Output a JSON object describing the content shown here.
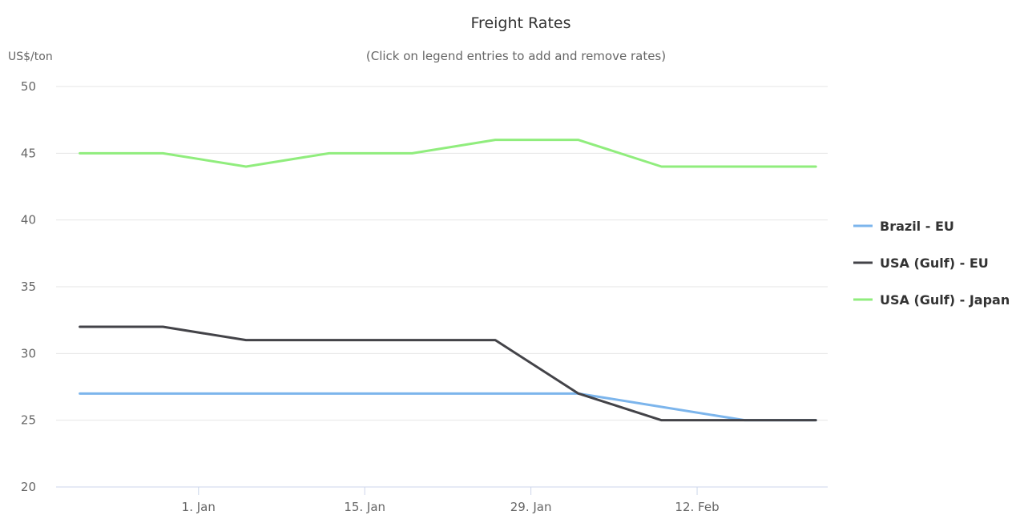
{
  "chart_data": {
    "type": "line",
    "title": "Freight Rates",
    "subtitle": "(Click on legend entries to add and remove rates)",
    "xlabel": "",
    "ylabel": "US$/ton",
    "ylim": [
      20,
      50
    ],
    "xlim": [
      "2017-12-20",
      "2018-02-23"
    ],
    "y_ticks": [
      20,
      25,
      30,
      35,
      40,
      45,
      50
    ],
    "x_ticks": [
      {
        "date": "2018-01-01",
        "label": "1. Jan"
      },
      {
        "date": "2018-01-15",
        "label": "15. Jan"
      },
      {
        "date": "2018-01-29",
        "label": "29. Jan"
      },
      {
        "date": "2018-02-12",
        "label": "12. Feb"
      }
    ],
    "x": [
      "2017-12-22",
      "2017-12-29",
      "2018-01-05",
      "2018-01-12",
      "2018-01-19",
      "2018-01-26",
      "2018-02-02",
      "2018-02-09",
      "2018-02-16",
      "2018-02-22"
    ],
    "grid": true,
    "legend_position": "right",
    "series": [
      {
        "name": "Brazil - EU",
        "color": "#7cb5ec",
        "values": [
          27,
          27,
          27,
          27,
          27,
          27,
          27,
          26,
          25,
          25
        ]
      },
      {
        "name": "USA (Gulf) - EU",
        "color": "#434348",
        "values": [
          32,
          32,
          31,
          31,
          31,
          31,
          27,
          25,
          25,
          25
        ]
      },
      {
        "name": "USA (Gulf) - Japan",
        "color": "#90ed7d",
        "values": [
          45,
          45,
          44,
          45,
          45,
          46,
          46,
          44,
          44,
          44
        ]
      }
    ]
  }
}
